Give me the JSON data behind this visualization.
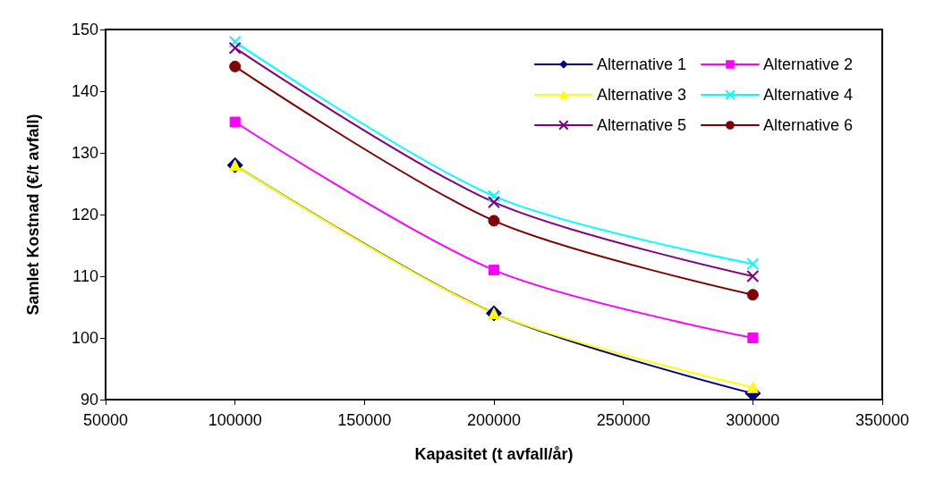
{
  "chart_data": {
    "type": "line",
    "xlabel": "Kapasitet (t avfall/år)",
    "ylabel": "Samlet Kostnad (€/t avfall)",
    "x": [
      100000,
      200000,
      300000
    ],
    "xlim": [
      50000,
      350000
    ],
    "xticks": [
      50000,
      100000,
      150000,
      200000,
      250000,
      300000,
      350000
    ],
    "ylim": [
      90,
      150
    ],
    "yticks": [
      90,
      100,
      110,
      120,
      130,
      140,
      150
    ],
    "grid": false,
    "legend": "top right",
    "line_style": "solid",
    "series": [
      {
        "name": "Alternative 1",
        "color": "#000080",
        "marker": "diamond",
        "values": [
          128,
          104,
          91
        ]
      },
      {
        "name": "Alternative 2",
        "color": "#ff00ff",
        "marker": "square",
        "values": [
          135,
          111,
          100
        ]
      },
      {
        "name": "Alternative 3",
        "color": "#ffff00",
        "marker": "triangle",
        "values": [
          128,
          104,
          92
        ]
      },
      {
        "name": "Alternative 4",
        "color": "#00ffff",
        "marker": "cross",
        "values": [
          148,
          123,
          112
        ]
      },
      {
        "name": "Alternative 5",
        "color": "#800080",
        "marker": "cross",
        "values": [
          147,
          122,
          110
        ]
      },
      {
        "name": "Alternative 6",
        "color": "#800000",
        "marker": "circle",
        "values": [
          144,
          119,
          107
        ]
      }
    ]
  }
}
